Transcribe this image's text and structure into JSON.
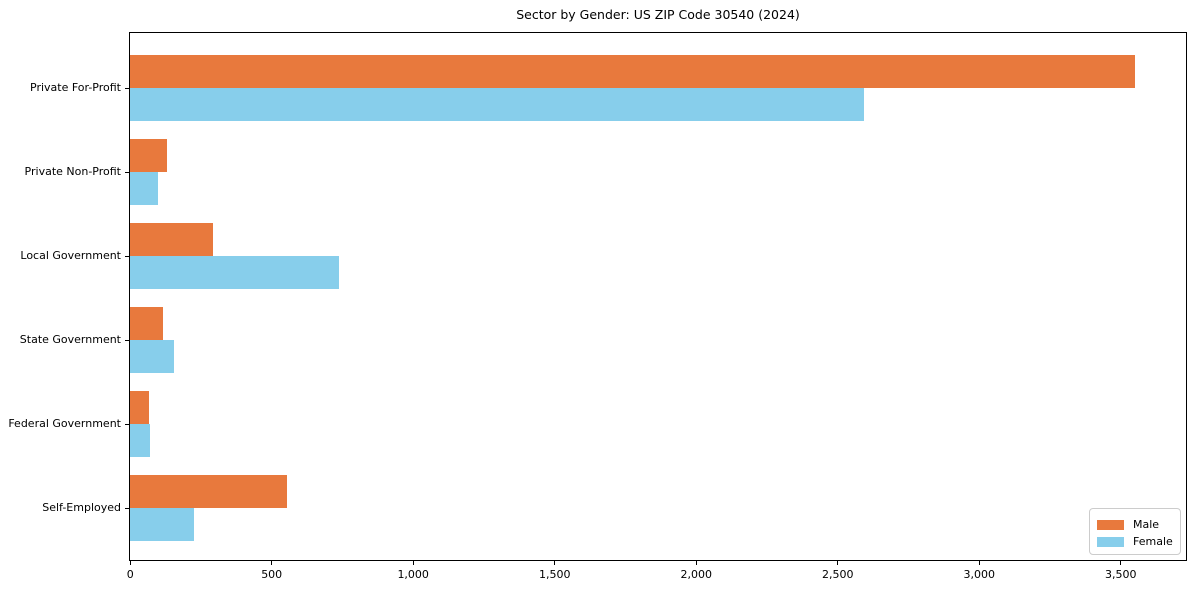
{
  "chart_data": {
    "type": "bar",
    "orientation": "horizontal",
    "title": "Sector by Gender: US ZIP Code 30540 (2024)",
    "categories": [
      "Private For-Profit",
      "Private Non-Profit",
      "Local Government",
      "State Government",
      "Federal Government",
      "Self-Employed"
    ],
    "series": [
      {
        "name": "Male",
        "color": "#E8793D",
        "values": [
          3550,
          130,
          295,
          118,
          67,
          555
        ]
      },
      {
        "name": "Female",
        "color": "#87CEEB",
        "values": [
          2595,
          100,
          740,
          155,
          72,
          225
        ]
      }
    ],
    "xlim": [
      0,
      3730
    ],
    "x_ticks": [
      0,
      500,
      1000,
      1500,
      2000,
      2500,
      3000,
      3500
    ],
    "x_tick_labels": [
      "0",
      "500",
      "1,000",
      "1,500",
      "2,000",
      "2,500",
      "3,000",
      "3,500"
    ],
    "xlabel": "",
    "ylabel": "",
    "grid": false,
    "legend": {
      "position": "lower right",
      "entries": [
        "Male",
        "Female"
      ]
    },
    "colors": {
      "axis": "#000000",
      "text": "#000000",
      "background": "#ffffff",
      "legend_border": "#cccccc"
    }
  }
}
